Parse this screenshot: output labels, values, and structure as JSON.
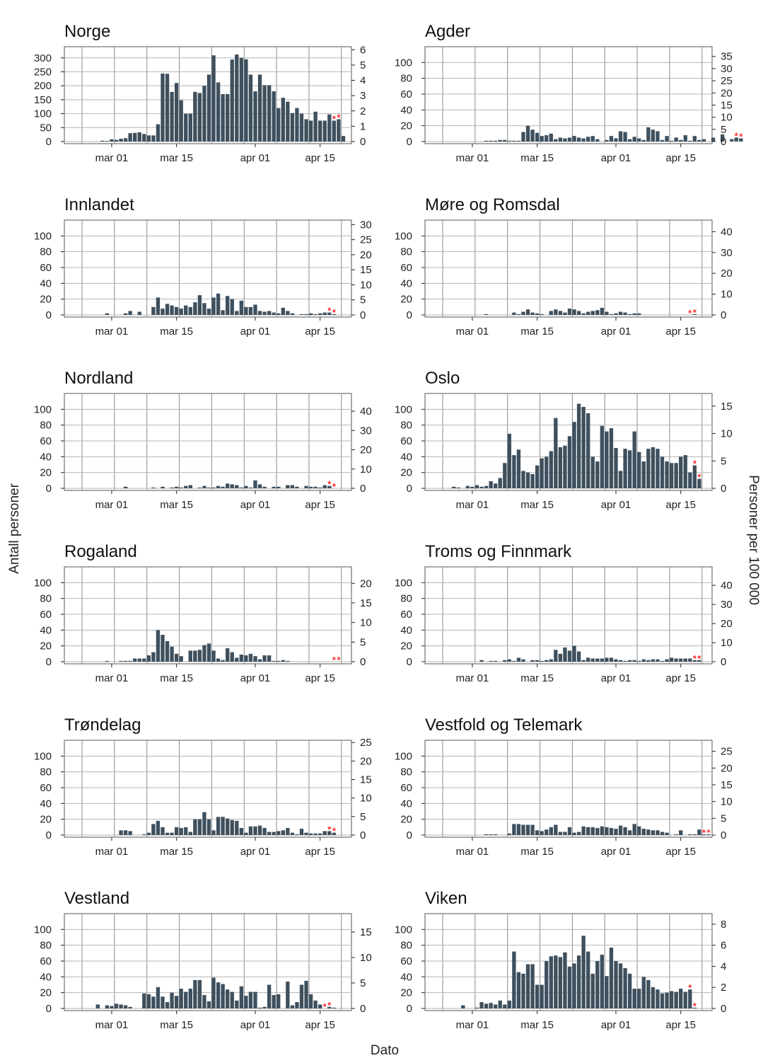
{
  "figure": {
    "ylabel_left": "Antall personer",
    "ylabel_right": "Personer per 100 000",
    "xlabel": "Dato"
  },
  "colors": {
    "bar": "#3e505e",
    "star": "#ff2b2b",
    "grid": "#8a8a8a",
    "frame": "#555555"
  },
  "chart_data": [
    {
      "type": "bar",
      "title": "Norge",
      "x": {
        "first": "2020-02-21",
        "ticks": [
          "mar 01",
          "mar 15",
          "apr 01",
          "apr 15"
        ]
      },
      "ylim": [
        0,
        340
      ],
      "yticks": [
        0,
        50,
        100,
        150,
        200,
        250,
        300
      ],
      "y2lim": [
        0,
        6.2
      ],
      "y2ticks": [
        0,
        1,
        2,
        3,
        4,
        5,
        6
      ],
      "values": [
        0,
        0,
        0,
        0,
        0,
        0,
        0,
        3,
        2,
        8,
        6,
        10,
        12,
        30,
        31,
        33,
        27,
        22,
        22,
        62,
        244,
        243,
        178,
        210,
        148,
        100,
        100,
        178,
        174,
        200,
        240,
        309,
        212,
        170,
        170,
        294,
        312,
        300,
        295,
        240,
        180,
        240,
        202,
        202,
        180,
        120,
        157,
        143,
        102,
        120,
        100,
        80,
        75,
        107,
        75,
        75,
        97,
        75,
        80,
        20
      ],
      "flagged": [
        57,
        58
      ]
    },
    {
      "type": "bar",
      "title": "Agder",
      "x": {
        "first": "2020-02-21",
        "ticks": [
          "mar 01",
          "mar 15",
          "apr 01",
          "apr 15"
        ]
      },
      "ylim": [
        0,
        120
      ],
      "yticks": [
        0,
        20,
        40,
        60,
        80,
        100
      ],
      "y2lim": [
        0,
        39
      ],
      "y2ticks": [
        0,
        5,
        10,
        15,
        20,
        25,
        30,
        35
      ],
      "values": [
        0,
        0,
        0,
        0,
        0,
        0,
        0,
        0,
        0,
        0,
        0,
        0,
        1,
        1,
        1,
        2,
        2,
        1,
        1,
        1,
        12,
        20,
        15,
        11,
        7,
        8,
        10,
        3,
        5,
        4,
        5,
        7,
        5,
        4,
        6,
        7,
        3,
        0,
        2,
        7,
        4,
        13,
        12,
        3,
        6,
        4,
        2,
        18,
        15,
        13,
        2,
        7,
        1,
        5,
        2,
        8,
        1,
        7,
        2,
        3,
        0,
        5,
        0,
        9,
        0,
        3,
        5,
        4
      ],
      "flagged": [
        66,
        67
      ]
    },
    {
      "type": "bar",
      "title": "Innlandet",
      "x": {
        "first": "2020-02-21",
        "ticks": [
          "mar 01",
          "mar 15",
          "apr 01",
          "apr 15"
        ]
      },
      "ylim": [
        0,
        120
      ],
      "yticks": [
        0,
        20,
        40,
        60,
        80,
        100
      ],
      "y2lim": [
        0,
        31.5
      ],
      "y2ticks": [
        0,
        5,
        10,
        15,
        20,
        25,
        30
      ],
      "values": [
        0,
        0,
        0,
        0,
        0,
        0,
        0,
        0,
        2,
        0,
        0,
        0,
        2,
        5,
        0,
        4,
        0,
        0,
        10,
        22,
        8,
        14,
        12,
        10,
        8,
        12,
        10,
        16,
        25,
        15,
        8,
        22,
        27,
        6,
        24,
        20,
        5,
        18,
        10,
        10,
        13,
        5,
        4,
        5,
        3,
        2,
        9,
        5,
        2,
        0,
        1,
        1,
        2,
        1,
        2,
        3,
        3,
        1
      ],
      "flagged": [
        56,
        57
      ]
    },
    {
      "type": "bar",
      "title": "Møre og Romsdal",
      "x": {
        "first": "2020-02-21",
        "ticks": [
          "mar 01",
          "mar 15",
          "apr 01",
          "apr 15"
        ]
      },
      "ylim": [
        0,
        120
      ],
      "yticks": [
        0,
        20,
        40,
        60,
        80,
        100
      ],
      "y2lim": [
        0,
        45.6
      ],
      "y2ticks": [
        0,
        10,
        20,
        30,
        40
      ],
      "values": [
        0,
        0,
        0,
        0,
        0,
        0,
        0,
        0,
        0,
        0,
        0,
        0,
        1,
        0,
        0,
        0,
        0,
        0,
        3,
        1,
        4,
        7,
        3,
        2,
        1,
        0,
        5,
        7,
        5,
        3,
        8,
        7,
        5,
        2,
        4,
        5,
        6,
        9,
        4,
        1,
        2,
        4,
        3,
        1,
        2,
        2,
        0,
        0,
        0,
        0,
        0,
        0,
        0,
        0,
        0,
        0,
        0,
        1
      ],
      "flagged": [
        56,
        57
      ]
    },
    {
      "type": "bar",
      "title": "Nordland",
      "x": {
        "first": "2020-02-21",
        "ticks": [
          "mar 01",
          "mar 15",
          "apr 01",
          "apr 15"
        ]
      },
      "ylim": [
        0,
        120
      ],
      "yticks": [
        0,
        20,
        40,
        60,
        80,
        100
      ],
      "y2lim": [
        0,
        49.2
      ],
      "y2ticks": [
        0,
        10,
        20,
        30,
        40
      ],
      "values": [
        0,
        0,
        0,
        0,
        0,
        0,
        0,
        0,
        0,
        0,
        0,
        0,
        2,
        0,
        0,
        0,
        0,
        0,
        1,
        0,
        2,
        0,
        1,
        2,
        1,
        3,
        4,
        0,
        1,
        3,
        1,
        1,
        3,
        2,
        6,
        5,
        4,
        1,
        3,
        1,
        10,
        5,
        2,
        0,
        2,
        2,
        0,
        4,
        4,
        2,
        0,
        3,
        2,
        2,
        1,
        4,
        3,
        0
      ],
      "flagged": [
        56,
        57
      ]
    },
    {
      "type": "bar",
      "title": "Oslo",
      "x": {
        "first": "2020-02-21",
        "ticks": [
          "mar 01",
          "mar 15",
          "apr 01",
          "apr 15"
        ]
      },
      "ylim": [
        0,
        120
      ],
      "yticks": [
        0,
        20,
        40,
        60,
        80,
        100
      ],
      "y2lim": [
        0,
        17.3
      ],
      "y2ticks": [
        0,
        5,
        10,
        15
      ],
      "values": [
        0,
        0,
        0,
        0,
        0,
        2,
        1,
        0,
        3,
        2,
        4,
        2,
        3,
        9,
        6,
        13,
        32,
        69,
        42,
        49,
        22,
        20,
        18,
        29,
        38,
        40,
        47,
        89,
        52,
        54,
        66,
        84,
        107,
        103,
        95,
        40,
        34,
        79,
        72,
        76,
        51,
        22,
        50,
        48,
        72,
        46,
        34,
        50,
        52,
        50,
        40,
        34,
        32,
        32,
        40,
        42,
        20,
        29,
        12
      ],
      "flagged": [
        57,
        58
      ]
    },
    {
      "type": "bar",
      "title": "Rogaland",
      "x": {
        "first": "2020-02-21",
        "ticks": [
          "mar 01",
          "mar 15",
          "apr 01",
          "apr 15"
        ]
      },
      "ylim": [
        0,
        120
      ],
      "yticks": [
        0,
        20,
        40,
        60,
        80,
        100
      ],
      "y2lim": [
        0,
        24.2
      ],
      "y2ticks": [
        0,
        5,
        10,
        15,
        20
      ],
      "values": [
        0,
        0,
        0,
        0,
        0,
        0,
        0,
        0,
        1,
        0,
        0,
        1,
        1,
        1,
        4,
        4,
        4,
        8,
        12,
        40,
        34,
        26,
        19,
        10,
        7,
        0,
        14,
        14,
        15,
        21,
        23,
        14,
        4,
        2,
        17,
        12,
        5,
        9,
        8,
        10,
        7,
        3,
        8,
        8,
        1,
        1,
        2,
        1,
        0,
        0,
        0,
        0,
        0,
        0,
        0,
        0,
        0,
        0,
        0
      ],
      "flagged": [
        57,
        58
      ]
    },
    {
      "type": "bar",
      "title": "Troms og Finnmark",
      "x": {
        "first": "2020-02-21",
        "ticks": [
          "mar 01",
          "mar 15",
          "apr 01",
          "apr 15"
        ]
      },
      "ylim": [
        0,
        120
      ],
      "yticks": [
        0,
        20,
        40,
        60,
        80,
        100
      ],
      "y2lim": [
        0,
        49.7
      ],
      "y2ticks": [
        0,
        10,
        20,
        30,
        40
      ],
      "values": [
        0,
        0,
        0,
        0,
        0,
        0,
        0,
        0,
        0,
        0,
        0,
        2,
        0,
        1,
        1,
        0,
        2,
        3,
        1,
        5,
        3,
        0,
        2,
        2,
        1,
        2,
        3,
        15,
        10,
        18,
        14,
        20,
        13,
        2,
        5,
        4,
        4,
        4,
        5,
        5,
        3,
        2,
        1,
        2,
        2,
        1,
        3,
        2,
        3,
        3,
        1,
        3,
        5,
        4,
        4,
        4,
        4,
        2,
        2
      ],
      "flagged": [
        57,
        58
      ]
    },
    {
      "type": "bar",
      "title": "Trøndelag",
      "x": {
        "first": "2020-02-21",
        "ticks": [
          "mar 01",
          "mar 15",
          "apr 01",
          "apr 15"
        ]
      },
      "ylim": [
        0,
        120
      ],
      "yticks": [
        0,
        20,
        40,
        60,
        80,
        100
      ],
      "y2lim": [
        0,
        25.6
      ],
      "y2ticks": [
        0,
        5,
        10,
        15,
        20,
        25
      ],
      "values": [
        0,
        0,
        0,
        0,
        0,
        0,
        0,
        0,
        0,
        0,
        0,
        6,
        6,
        5,
        0,
        0,
        1,
        3,
        14,
        18,
        10,
        3,
        3,
        10,
        9,
        10,
        4,
        20,
        20,
        29,
        20,
        6,
        23,
        23,
        21,
        19,
        18,
        9,
        3,
        11,
        11,
        12,
        9,
        4,
        4,
        5,
        6,
        9,
        3,
        1,
        8,
        3,
        2,
        2,
        2,
        5,
        5,
        3
      ],
      "flagged": [
        56,
        57
      ]
    },
    {
      "type": "bar",
      "title": "Vestfold og Telemark",
      "x": {
        "first": "2020-02-21",
        "ticks": [
          "mar 01",
          "mar 15",
          "apr 01",
          "apr 15"
        ]
      },
      "ylim": [
        0,
        120
      ],
      "yticks": [
        0,
        20,
        40,
        60,
        80,
        100
      ],
      "y2lim": [
        0,
        28.3
      ],
      "y2ticks": [
        0,
        5,
        10,
        15,
        20,
        25
      ],
      "values": [
        0,
        0,
        0,
        0,
        0,
        0,
        0,
        0,
        0,
        0,
        0,
        0,
        1,
        1,
        1,
        0,
        0,
        2,
        14,
        14,
        13,
        13,
        13,
        6,
        5,
        7,
        10,
        13,
        4,
        4,
        10,
        3,
        4,
        11,
        10,
        10,
        9,
        11,
        10,
        9,
        8,
        12,
        10,
        6,
        14,
        11,
        8,
        7,
        6,
        6,
        4,
        3,
        0,
        1,
        6,
        0,
        1,
        1,
        7,
        1,
        1
      ],
      "flagged": [
        59,
        60
      ]
    },
    {
      "type": "bar",
      "title": "Vestland",
      "x": {
        "first": "2020-02-21",
        "ticks": [
          "mar 01",
          "mar 15",
          "apr 01",
          "apr 15"
        ]
      },
      "ylim": [
        0,
        120
      ],
      "yticks": [
        0,
        20,
        40,
        60,
        80,
        100
      ],
      "y2lim": [
        0,
        18.6
      ],
      "y2ticks": [
        0,
        5,
        10,
        15
      ],
      "values": [
        0,
        0,
        0,
        0,
        0,
        0,
        5,
        0,
        4,
        3,
        6,
        5,
        4,
        2,
        0,
        0,
        19,
        18,
        15,
        27,
        15,
        8,
        20,
        16,
        25,
        21,
        25,
        36,
        36,
        17,
        9,
        39,
        33,
        31,
        24,
        21,
        10,
        28,
        16,
        21,
        21,
        1,
        2,
        30,
        17,
        18,
        0,
        34,
        4,
        8,
        30,
        35,
        18,
        10,
        5,
        0,
        2,
        1
      ],
      "flagged": [
        55,
        56
      ]
    },
    {
      "type": "bar",
      "title": "Viken",
      "x": {
        "first": "2020-02-21",
        "ticks": [
          "mar 01",
          "mar 15",
          "apr 01",
          "apr 15"
        ]
      },
      "ylim": [
        0,
        120
      ],
      "yticks": [
        0,
        20,
        40,
        60,
        80,
        100
      ],
      "y2lim": [
        0,
        9.0
      ],
      "y2ticks": [
        0,
        2,
        4,
        6,
        8
      ],
      "values": [
        0,
        0,
        0,
        0,
        0,
        0,
        0,
        4,
        0,
        0,
        1,
        8,
        6,
        7,
        5,
        10,
        5,
        10,
        72,
        46,
        44,
        56,
        56,
        30,
        30,
        60,
        66,
        67,
        65,
        71,
        53,
        57,
        67,
        92,
        72,
        44,
        60,
        68,
        41,
        77,
        60,
        57,
        51,
        44,
        25,
        25,
        40,
        36,
        27,
        24,
        19,
        20,
        22,
        21,
        25,
        21,
        24,
        1
      ],
      "flagged": [
        56,
        57
      ]
    }
  ]
}
